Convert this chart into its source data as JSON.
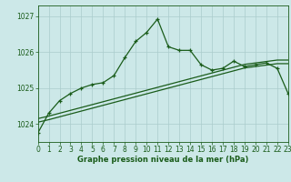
{
  "title": "Graphe pression niveau de la mer (hPa)",
  "bg_color": "#cce8e8",
  "grid_color": "#aacccc",
  "line_color": "#1a5c1a",
  "xlim": [
    0,
    23
  ],
  "ylim": [
    1023.5,
    1027.3
  ],
  "yticks": [
    1024,
    1025,
    1026,
    1027
  ],
  "xticks": [
    0,
    1,
    2,
    3,
    4,
    5,
    6,
    7,
    8,
    9,
    10,
    11,
    12,
    13,
    14,
    15,
    16,
    17,
    18,
    19,
    20,
    21,
    22,
    23
  ],
  "hours": [
    0,
    1,
    2,
    3,
    4,
    5,
    6,
    7,
    8,
    9,
    10,
    11,
    12,
    13,
    14,
    15,
    16,
    17,
    18,
    19,
    20,
    21,
    22,
    23
  ],
  "pressure_main": [
    1023.75,
    1024.3,
    1024.65,
    1024.85,
    1025.0,
    1025.1,
    1025.15,
    1025.35,
    1025.85,
    1026.3,
    1026.55,
    1026.92,
    1026.15,
    1026.05,
    1026.05,
    1025.65,
    1025.5,
    1025.55,
    1025.75,
    1025.6,
    1025.65,
    1025.7,
    1025.55,
    1024.85
  ],
  "pressure_smooth1": [
    1024.15,
    1024.22,
    1024.3,
    1024.38,
    1024.46,
    1024.54,
    1024.62,
    1024.7,
    1024.78,
    1024.86,
    1024.94,
    1025.02,
    1025.1,
    1025.18,
    1025.26,
    1025.34,
    1025.42,
    1025.5,
    1025.58,
    1025.66,
    1025.7,
    1025.74,
    1025.78,
    1025.78
  ],
  "pressure_smooth2": [
    1024.05,
    1024.12,
    1024.2,
    1024.28,
    1024.36,
    1024.44,
    1024.52,
    1024.6,
    1024.68,
    1024.76,
    1024.84,
    1024.92,
    1025.0,
    1025.08,
    1025.16,
    1025.24,
    1025.32,
    1025.4,
    1025.48,
    1025.56,
    1025.6,
    1025.64,
    1025.68,
    1025.68
  ],
  "ylabel_fontsize": 6.0,
  "tick_fontsize": 5.5
}
